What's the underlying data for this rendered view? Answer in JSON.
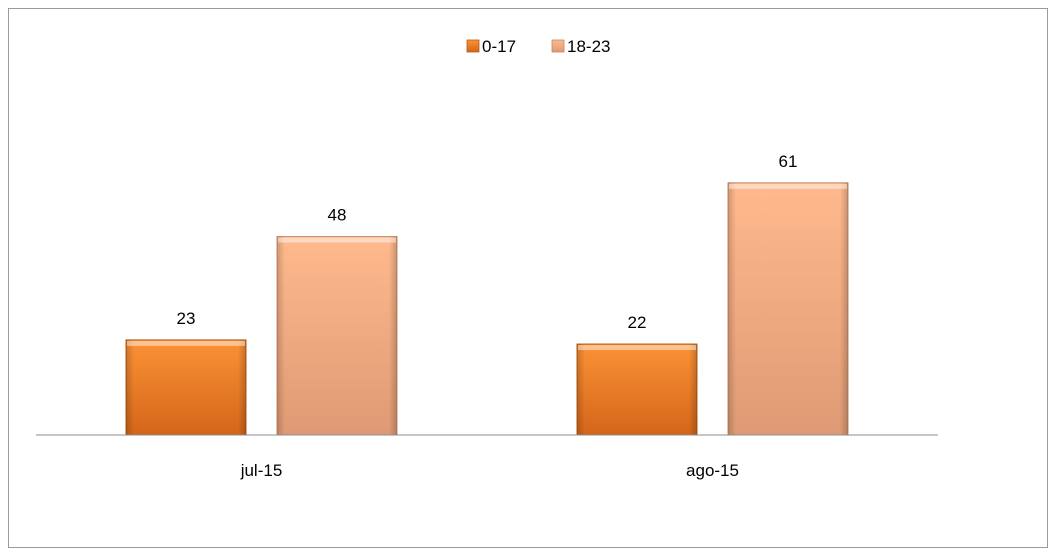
{
  "chart_data": {
    "type": "bar",
    "categories": [
      "jul-15",
      "ago-15"
    ],
    "series": [
      {
        "name": "0-17",
        "values": [
          23,
          22
        ],
        "color": "#F0821E"
      },
      {
        "name": "18-23",
        "values": [
          48,
          61
        ],
        "color": "#F5AA78"
      }
    ],
    "ylim": [
      0,
      82
    ],
    "grid": false,
    "legend": "top-center",
    "data_labels": true
  }
}
